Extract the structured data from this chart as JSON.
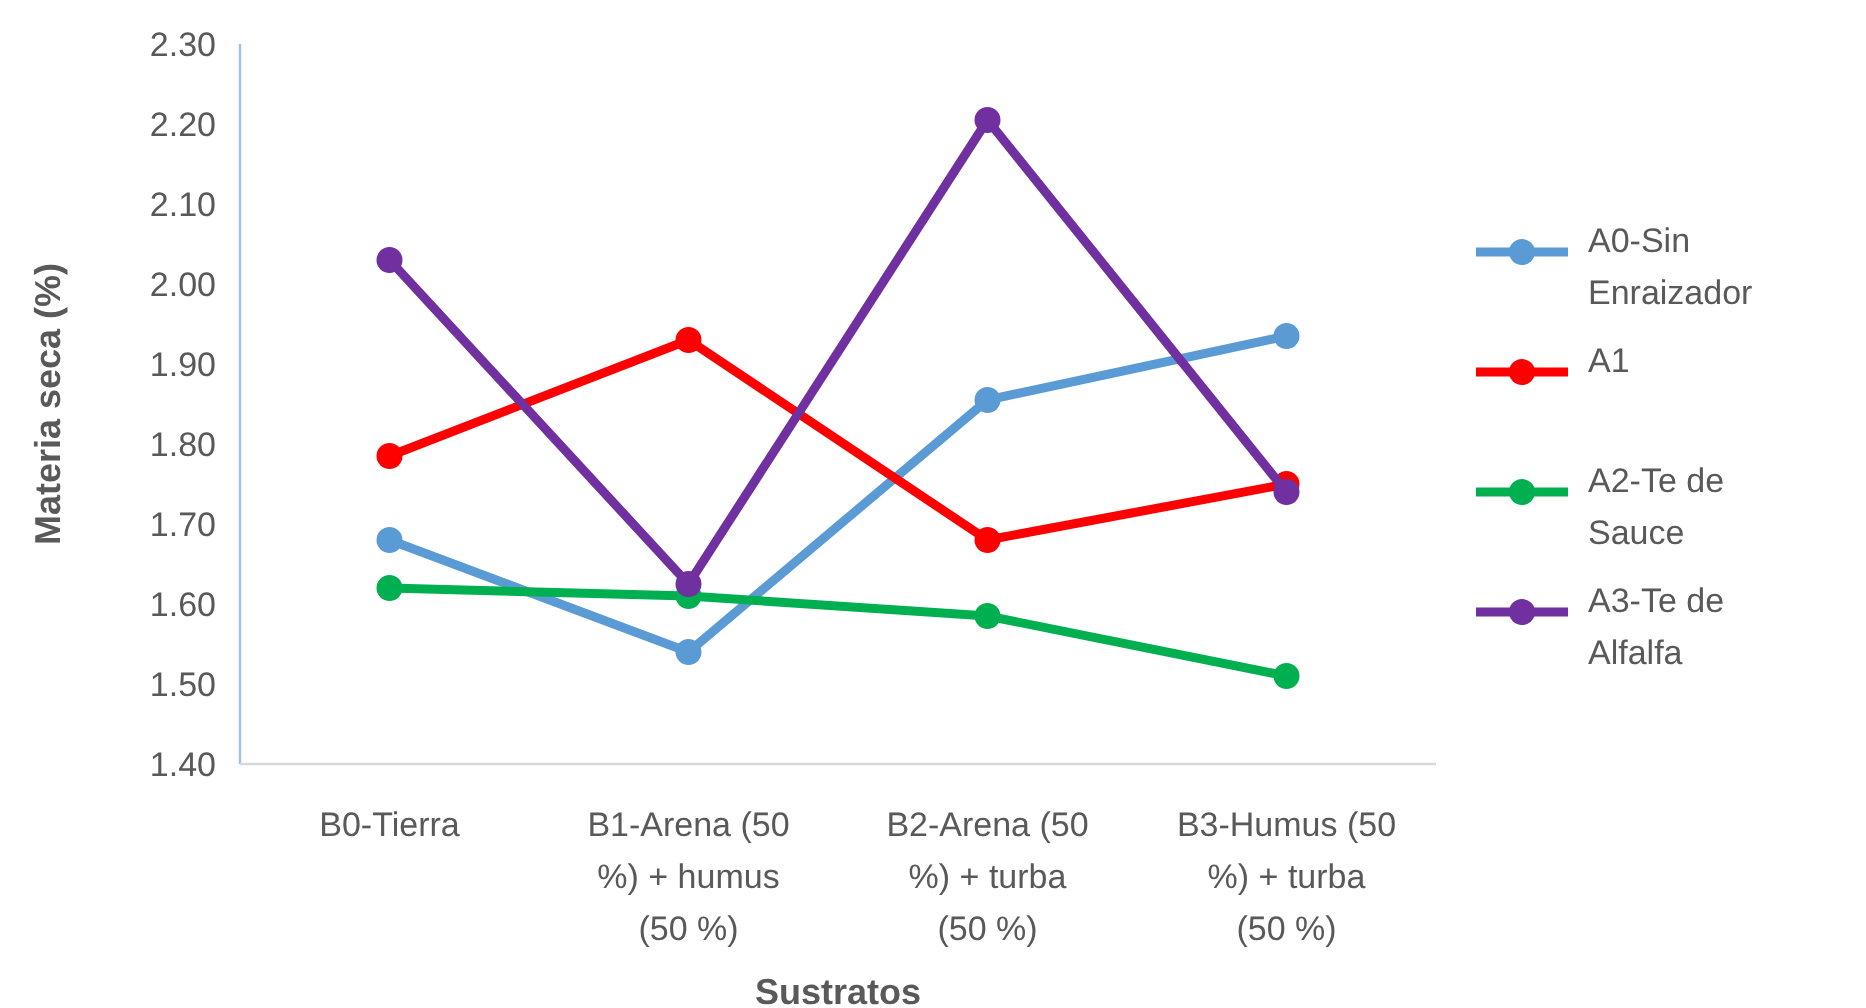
{
  "chart_data": {
    "type": "line",
    "xlabel": "Sustratos",
    "ylabel": "Materia seca (%)",
    "categories": [
      "B0-Tierra",
      "B1-Arena (50 %) + humus (50 %)",
      "B2-Arena (50 %) + turba (50 %)",
      "B3-Humus (50 %) + turba (50 %)"
    ],
    "series": [
      {
        "name": "A0-Sin Enraizador",
        "color": "#5b9bd5",
        "values": [
          1.68,
          1.54,
          1.855,
          1.935
        ]
      },
      {
        "name": "A1",
        "color": "#ff0000",
        "values": [
          1.785,
          1.93,
          1.68,
          1.75
        ]
      },
      {
        "name": "A2-Te de Sauce",
        "color": "#00b050",
        "values": [
          1.62,
          1.61,
          1.585,
          1.51
        ]
      },
      {
        "name": "A3-Te de Alfalfa",
        "color": "#7030a0",
        "values": [
          2.03,
          1.625,
          2.205,
          1.74
        ]
      }
    ],
    "ylim": [
      1.4,
      2.3
    ],
    "yticks": [
      {
        "value": 1.4,
        "label": "1.40"
      },
      {
        "value": 1.5,
        "label": "1.50"
      },
      {
        "value": 1.6,
        "label": "1.60"
      },
      {
        "value": 1.7,
        "label": "1.70"
      },
      {
        "value": 1.8,
        "label": "1.80"
      },
      {
        "value": 1.9,
        "label": "1.90"
      },
      {
        "value": 2.0,
        "label": "2.00"
      },
      {
        "value": 2.1,
        "label": "2.10"
      },
      {
        "value": 2.2,
        "label": "2.20"
      },
      {
        "value": 2.3,
        "label": "2.30"
      }
    ],
    "marker": "circle",
    "line_style": "solid",
    "legend": "right",
    "grid": false
  }
}
